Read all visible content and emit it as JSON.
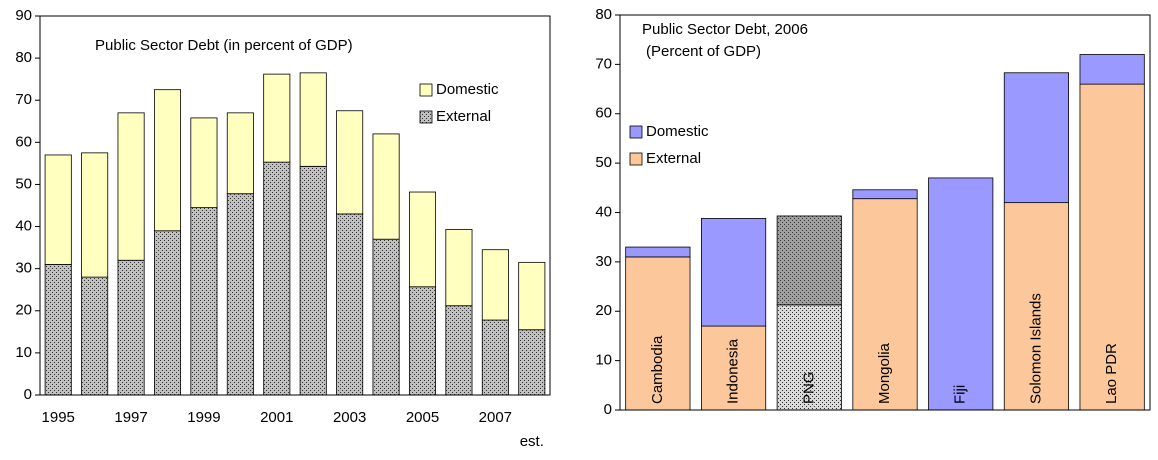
{
  "chart_data": [
    {
      "type": "stacked_bar",
      "title": "Public Sector Debt (in percent of GDP)",
      "categories": [
        "1995",
        null,
        "1997",
        null,
        "1999",
        null,
        "2001",
        null,
        "2003",
        null,
        "2005",
        null,
        "2007",
        null
      ],
      "annotation": "est.",
      "series": [
        {
          "name": "External",
          "color": "#c0c0c0",
          "pattern": "dots",
          "values": [
            31,
            28,
            32,
            39,
            44.5,
            47.8,
            55.3,
            54.3,
            43,
            37,
            25.7,
            21.2,
            17.8,
            15.5
          ]
        },
        {
          "name": "Domestic",
          "color": "#ffffc0",
          "values": [
            26,
            29.5,
            35,
            33.5,
            21.3,
            19.2,
            20.9,
            22.2,
            24.5,
            25,
            22.5,
            18.1,
            16.7,
            16
          ]
        }
      ],
      "ylim": [
        0,
        90
      ],
      "yticks": [
        0,
        10,
        20,
        30,
        40,
        50,
        60,
        70,
        80,
        90
      ],
      "grid": false,
      "legend": "upper right",
      "legend_order": "reversed"
    },
    {
      "type": "stacked_bar",
      "title": "Public Sector Debt, 2006",
      "subtitle": "(Percent of GDP)",
      "categories": [
        "Cambodia",
        "Indonesia",
        "PNG",
        "Mongolia",
        "Fiji",
        "Solomon Islands",
        "Lao PDR"
      ],
      "category_labels": "inside",
      "series": [
        {
          "name": "External",
          "color": "#fcc89b",
          "point_colors": [
            null,
            null,
            "#d9d9d9",
            null,
            null,
            null,
            null
          ],
          "values": [
            31,
            17,
            21.3,
            42.8,
            0,
            42,
            66
          ]
        },
        {
          "name": "Domestic",
          "color": "#9999ff",
          "point_colors": [
            null,
            null,
            "#a0a0a0",
            null,
            null,
            null,
            null
          ],
          "values": [
            2,
            21.8,
            18,
            1.8,
            47,
            26.3,
            6
          ]
        }
      ],
      "ylim": [
        0,
        80
      ],
      "yticks": [
        0,
        10,
        20,
        30,
        40,
        50,
        60,
        70,
        80
      ],
      "grid": false,
      "legend": "upper left",
      "legend_order": "reversed"
    }
  ]
}
